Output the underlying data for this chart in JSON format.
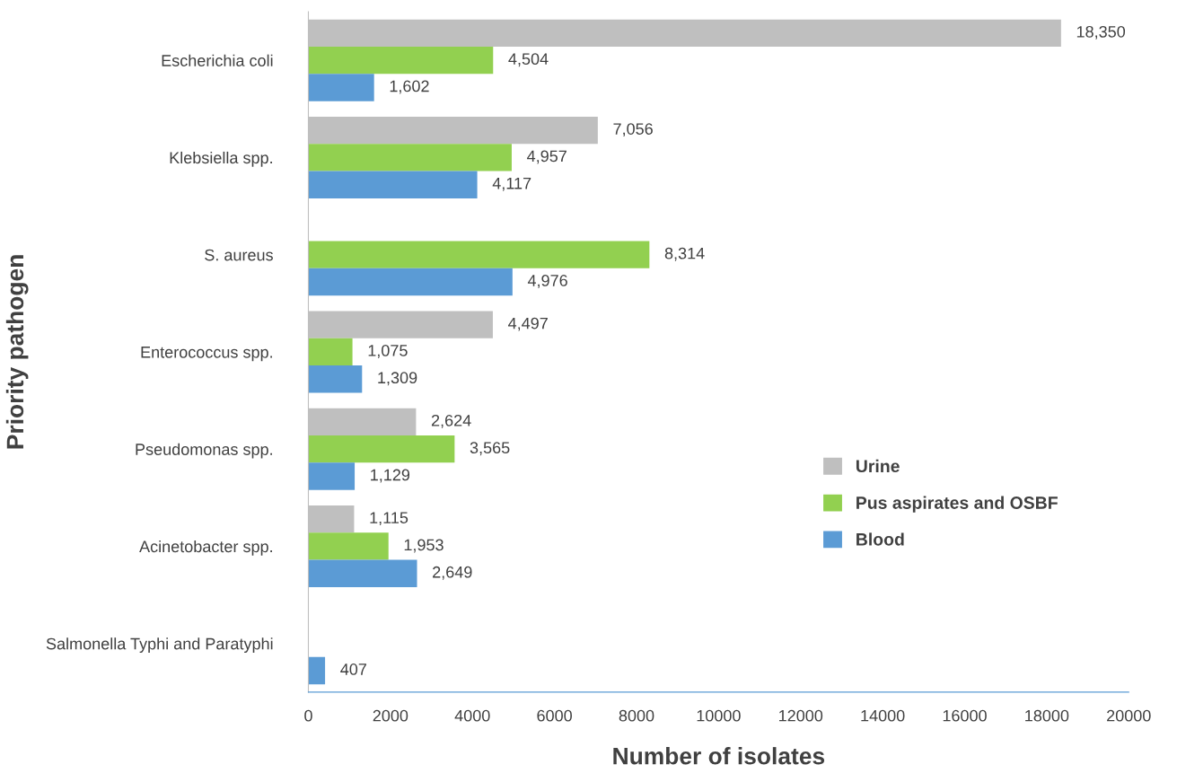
{
  "chart_data": {
    "type": "bar",
    "orientation": "horizontal",
    "xlabel": "Number of isolates",
    "ylabel": "Priority pathogen",
    "categories": [
      "Escherichia coli",
      "Klebsiella spp.",
      "S. aureus",
      "Enterococcus spp.",
      "Pseudomonas spp.",
      "Acinetobacter spp.",
      "Salmonella Typhi and Paratyphi"
    ],
    "series": [
      {
        "name": "Urine",
        "color": "#bfbfbf",
        "values": [
          18350,
          7056,
          null,
          4497,
          2624,
          1115,
          null
        ],
        "value_labels": [
          "18,350",
          "7,056",
          null,
          "4,497",
          "2,624",
          "1,115",
          null
        ]
      },
      {
        "name": "Pus aspirates and OSBF",
        "color": "#92d050",
        "values": [
          4504,
          4957,
          8314,
          1075,
          3565,
          1953,
          null
        ],
        "value_labels": [
          "4,504",
          "4,957",
          "8,314",
          "1,075",
          "3,565",
          "1,953",
          null
        ]
      },
      {
        "name": "Blood",
        "color": "#5b9bd5",
        "values": [
          1602,
          4117,
          4976,
          1309,
          1129,
          2649,
          407
        ],
        "value_labels": [
          "1,602",
          "4,117",
          "4,976",
          "1,309",
          "1,129",
          "2,649",
          "407"
        ]
      }
    ],
    "xlim": [
      0,
      20000
    ],
    "xticks": [
      0,
      2000,
      4000,
      6000,
      8000,
      10000,
      12000,
      14000,
      16000,
      18000,
      20000
    ],
    "legend": "bottom right",
    "grid": false
  }
}
